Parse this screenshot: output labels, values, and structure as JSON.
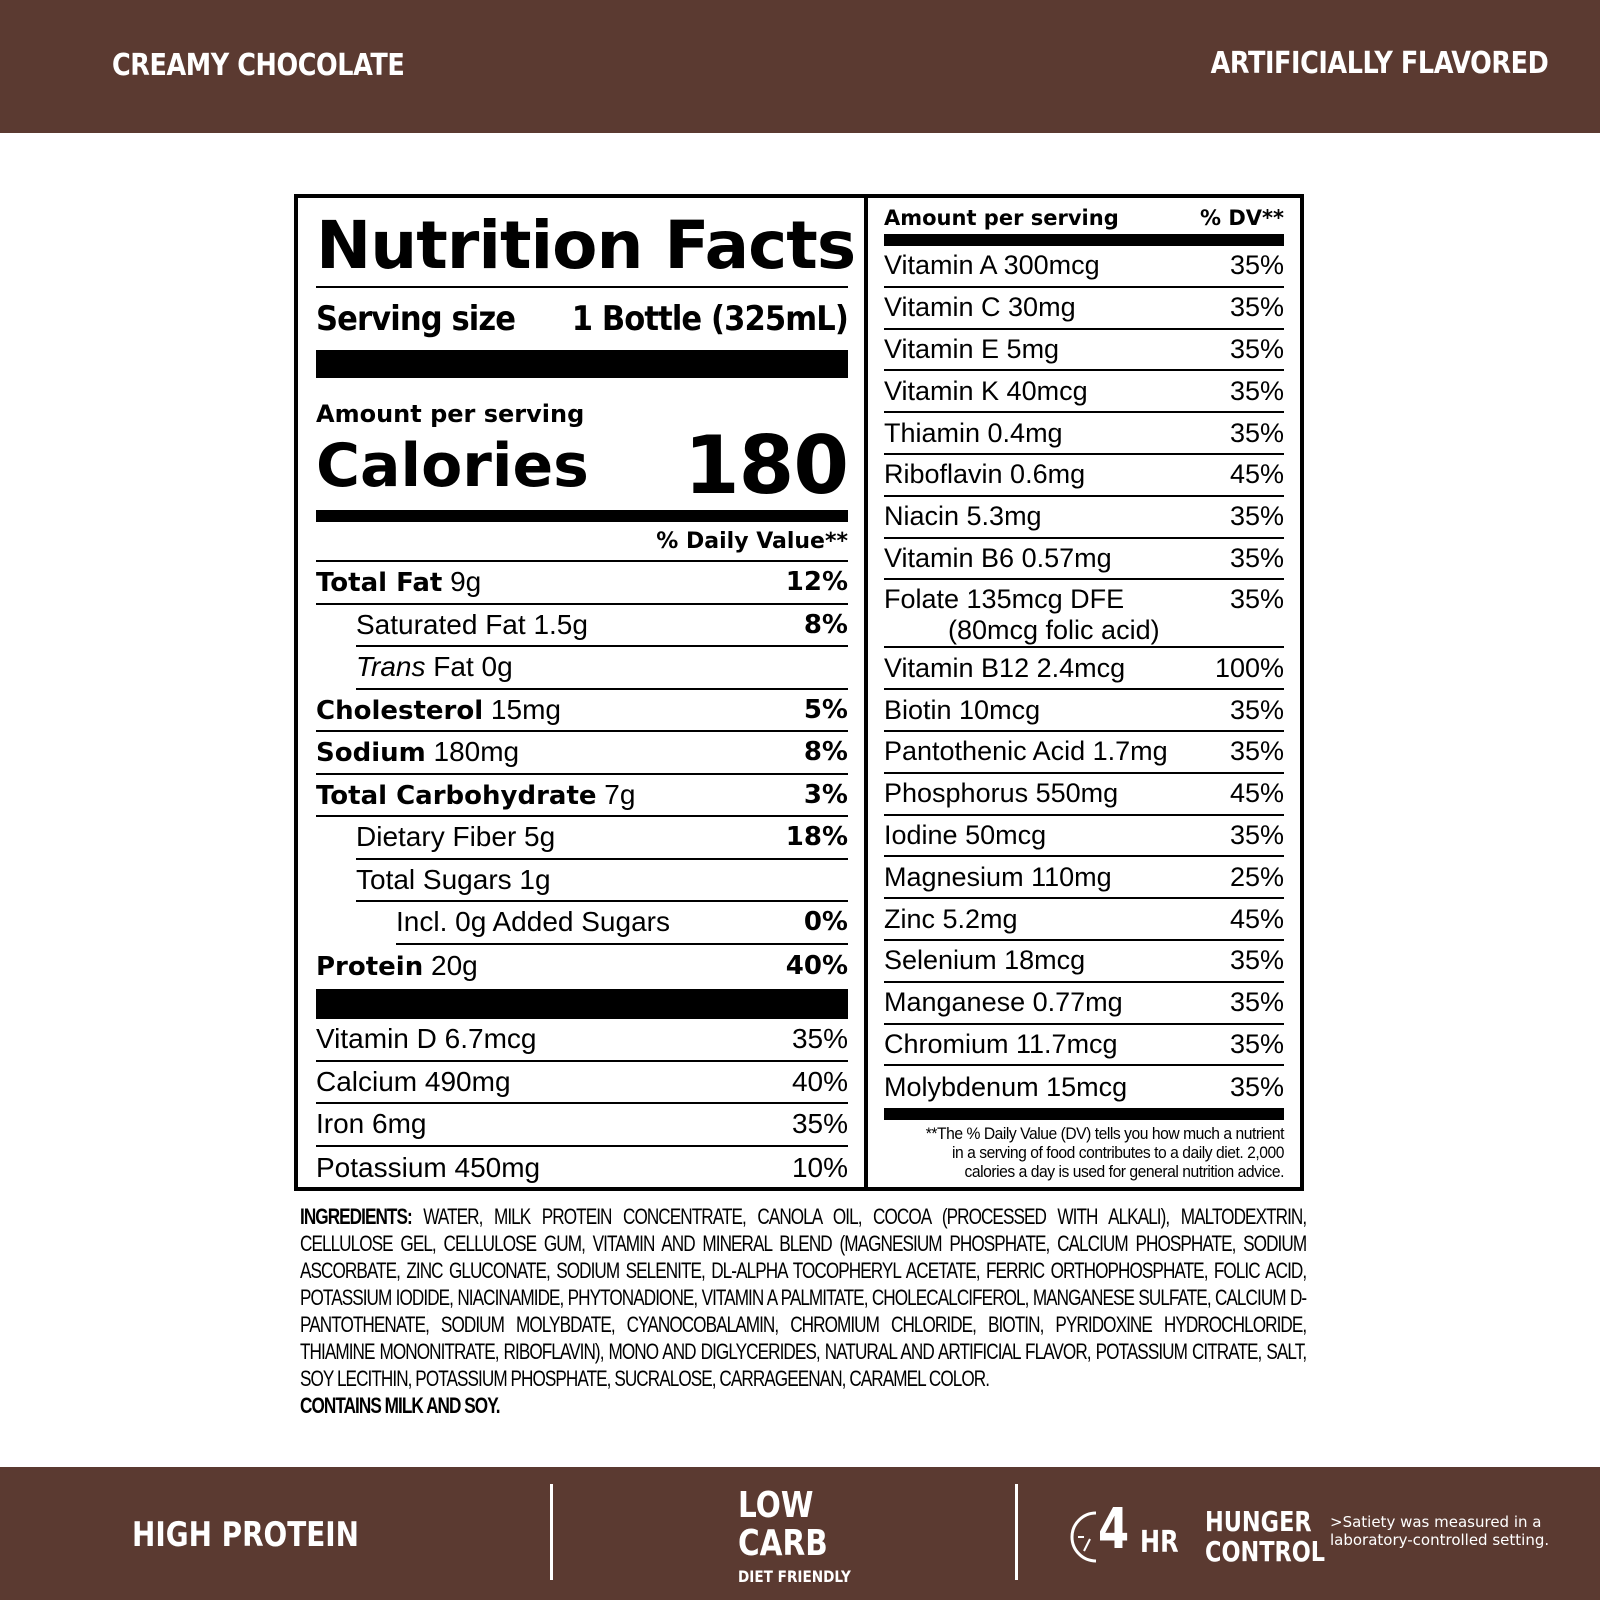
{
  "header": {
    "flavor": "CREAMY CHOCOLATE",
    "note": "ARTIFICIALLY FLAVORED"
  },
  "facts": {
    "title": "Nutrition Facts",
    "serving_label": "Serving size",
    "serving_value": "1 Bottle (325mL)",
    "amount_per_serving": "Amount per serving",
    "calories_label": "Calories",
    "calories_value": "180",
    "dv_header": "% Daily Value**",
    "nutrients": [
      {
        "name": "Total Fat",
        "amount": "9g",
        "dv": "12%"
      },
      {
        "name": "Saturated Fat",
        "amount": "1.5g",
        "dv": "8%"
      },
      {
        "name": "Trans",
        "amount": "Fat 0g",
        "dv": ""
      },
      {
        "name": "Cholesterol",
        "amount": "15mg",
        "dv": "5%"
      },
      {
        "name": "Sodium",
        "amount": "180mg",
        "dv": "8%"
      },
      {
        "name": "Total Carbohydrate",
        "amount": "7g",
        "dv": "3%"
      },
      {
        "name": "Dietary Fiber",
        "amount": "5g",
        "dv": "18%"
      },
      {
        "name": "Total Sugars",
        "amount": "1g",
        "dv": ""
      },
      {
        "name": "Incl. 0g Added Sugars",
        "amount": "",
        "dv": "0%"
      },
      {
        "name": "Protein",
        "amount": "20g",
        "dv": "40%"
      }
    ],
    "vitamins_left": [
      {
        "name": "Vitamin D 6.7mcg",
        "dv": "35%"
      },
      {
        "name": "Calcium 490mg",
        "dv": "40%"
      },
      {
        "name": "Iron 6mg",
        "dv": "35%"
      },
      {
        "name": "Potassium 450mg",
        "dv": "10%"
      }
    ],
    "right_header": {
      "label": "Amount per serving",
      "dv": "% DV**"
    },
    "vitamins_right": [
      {
        "name": "Vitamin A 300mcg",
        "dv": "35%"
      },
      {
        "name": "Vitamin C 30mg",
        "dv": "35%"
      },
      {
        "name": "Vitamin E 5mg",
        "dv": "35%"
      },
      {
        "name": "Vitamin K 40mcg",
        "dv": "35%"
      },
      {
        "name": "Thiamin 0.4mg",
        "dv": "35%"
      },
      {
        "name": "Riboflavin 0.6mg",
        "dv": "45%"
      },
      {
        "name": "Niacin 5.3mg",
        "dv": "35%"
      },
      {
        "name": "Vitamin B6 0.57mg",
        "dv": "35%"
      },
      {
        "name": "Folate 135mcg DFE",
        "sub": "(80mcg folic acid)",
        "dv": "35%"
      },
      {
        "name": "Vitamin B12 2.4mcg",
        "dv": "100%"
      },
      {
        "name": "Biotin 10mcg",
        "dv": "35%"
      },
      {
        "name": "Pantothenic Acid 1.7mg",
        "dv": "35%"
      },
      {
        "name": "Phosphorus 550mg",
        "dv": "45%"
      },
      {
        "name": "Iodine 50mcg",
        "dv": "35%"
      },
      {
        "name": "Magnesium 110mg",
        "dv": "25%"
      },
      {
        "name": "Zinc 5.2mg",
        "dv": "45%"
      },
      {
        "name": "Selenium 18mcg",
        "dv": "35%"
      },
      {
        "name": "Manganese 0.77mg",
        "dv": "35%"
      },
      {
        "name": "Chromium 11.7mcg",
        "dv": "35%"
      },
      {
        "name": "Molybdenum 15mcg",
        "dv": "35%"
      }
    ],
    "footnote": "**The % Daily Value (DV) tells you how much a nutrient in a serving of food contributes to a daily diet. 2,000 calories a day is used for general nutrition advice."
  },
  "ingredients": {
    "label": "INGREDIENTS:",
    "text": "WATER, MILK PROTEIN CONCENTRATE, CANOLA OIL, COCOA (PROCESSED WITH ALKALI), MALTODEXTRIN, CELLULOSE GEL, CELLULOSE GUM, VITAMIN AND MINERAL BLEND (MAGNESIUM PHOSPHATE, CALCIUM PHOSPHATE, SODIUM ASCORBATE, ZINC GLUCONATE, SODIUM SELENITE, DL-ALPHA TOCOPHERYL ACETATE, FERRIC ORTHOPHOSPHATE, FOLIC ACID, POTASSIUM IODIDE, NIACINAMIDE, PHYTONADIONE, VITAMIN A PALMITATE, CHOLECALCIFEROL, MANGANESE SULFATE, CALCIUM D-PANTOTHENATE, SODIUM MOLYBDATE, CYANOCOBALAMIN, CHROMIUM CHLORIDE, BIOTIN, PYRIDOXINE HYDROCHLORIDE, THIAMINE MONONITRATE, RIBOFLAVIN), MONO AND DIGLYCERIDES, NATURAL AND ARTIFICIAL FLAVOR, POTASSIUM CITRATE, SALT, SOY LECITHIN, POTASSIUM PHOSPHATE, SUCRALOSE, CARRAGEENAN, CARAMEL COLOR.",
    "allergens": "CONTAINS MILK AND SOY."
  },
  "footer": {
    "high_protein": "HIGH PROTEIN",
    "low": "LOW",
    "carb": "CARB",
    "diet_friendly": "DIET FRIENDLY",
    "four": "4",
    "hr": "HR",
    "hunger": "HUNGER",
    "control": "CONTROL",
    "satiety_1": ">Satiety was measured in a",
    "satiety_2": "laboratory-controlled setting.",
    "icon": "clock-icon"
  },
  "colors": {
    "brand_brown": "#5b3a31"
  }
}
